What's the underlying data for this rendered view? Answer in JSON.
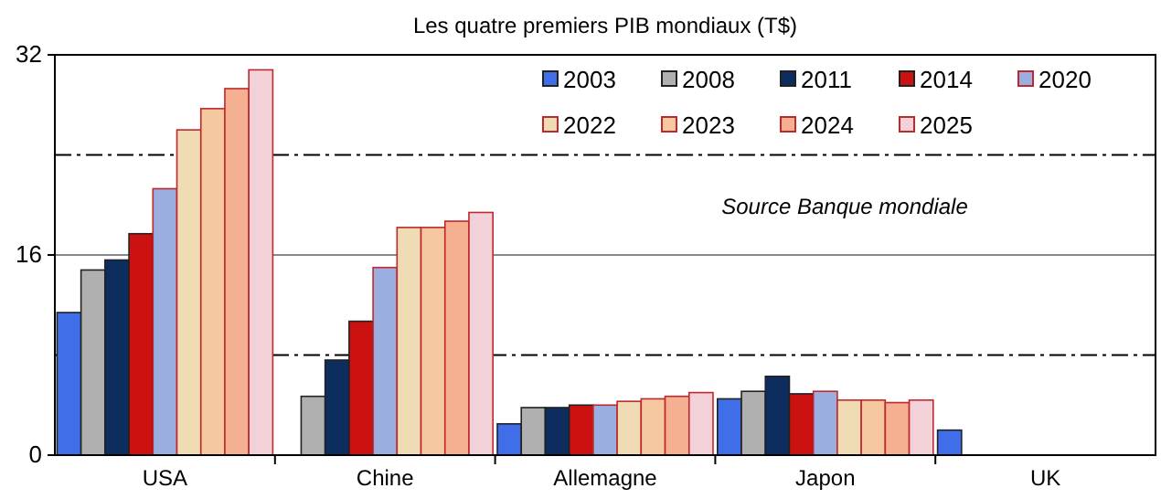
{
  "chart_data": {
    "type": "bar",
    "title": "Les quatre premiers PIB mondiaux (T$)",
    "categories": [
      "USA",
      "Chine",
      "Allemagne",
      "Japon",
      "UK"
    ],
    "series": [
      {
        "name": "2003",
        "color": "#3f6ee8",
        "values": [
          11.4,
          null,
          2.5,
          4.5,
          2.0
        ]
      },
      {
        "name": "2008",
        "color": "#b0b0b0",
        "values": [
          14.8,
          4.7,
          3.8,
          5.1,
          null
        ]
      },
      {
        "name": "2011",
        "color": "#0d2d5e",
        "values": [
          15.6,
          7.6,
          3.8,
          6.3,
          null
        ]
      },
      {
        "name": "2014",
        "color": "#cc1111",
        "values": [
          17.7,
          10.7,
          4.0,
          4.9,
          null
        ]
      },
      {
        "name": "2020",
        "color": "#9aaee0",
        "values": [
          21.3,
          15.0,
          4.0,
          5.1,
          null
        ]
      },
      {
        "name": "2022",
        "color": "#efdcb4",
        "values": [
          26.0,
          18.2,
          4.3,
          4.4,
          null
        ]
      },
      {
        "name": "2023",
        "color": "#f6c8a0",
        "values": [
          27.7,
          18.2,
          4.5,
          4.4,
          null
        ]
      },
      {
        "name": "2024",
        "color": "#f4b090",
        "values": [
          29.3,
          18.7,
          4.7,
          4.2,
          null
        ]
      },
      {
        "name": "2025",
        "color": "#f2d2d8",
        "values": [
          30.8,
          19.4,
          5.0,
          4.4,
          null
        ]
      }
    ],
    "ylim": [
      0,
      32
    ],
    "yticks": [
      0,
      16,
      32
    ],
    "grid": "y",
    "legend": "top right",
    "ref_lines": [
      {
        "axis": "y",
        "value": 24,
        "line_style": "dashed"
      },
      {
        "axis": "y",
        "value": 8,
        "line_style": "dashed"
      }
    ],
    "annotations": [
      "Source Banque mondiale"
    ]
  }
}
